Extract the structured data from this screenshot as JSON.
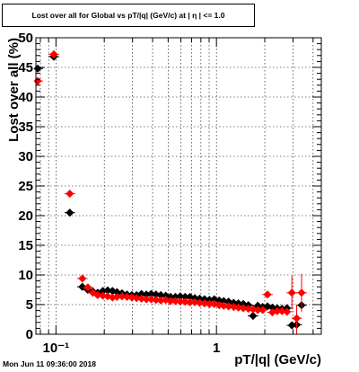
{
  "chart_data": {
    "type": "scatter",
    "title": "Lost over all for Global vs pT/|q| (GeV/c) at | η | <= 1.0",
    "xlabel": "pT/|q| (GeV/c)",
    "ylabel": "Lost over all (%)",
    "x_scale": "log",
    "xlim": [
      0.075,
      4.5
    ],
    "ylim": [
      0,
      50
    ],
    "x_tick_labels": [
      "10⁻¹",
      "1"
    ],
    "y_tick_labels": [
      "0",
      "5",
      "10",
      "15",
      "20",
      "25",
      "30",
      "35",
      "40",
      "45",
      "50"
    ],
    "grid": true,
    "series": [
      {
        "color": "#000000",
        "points": [
          {
            "x": 0.077,
            "y": 44.8
          },
          {
            "x": 0.097,
            "y": 46.8
          },
          {
            "x": 0.122,
            "y": 20.5
          },
          {
            "x": 0.146,
            "y": 8.0
          },
          {
            "x": 0.158,
            "y": 7.5
          },
          {
            "x": 0.17,
            "y": 7.2
          },
          {
            "x": 0.182,
            "y": 7.0
          },
          {
            "x": 0.196,
            "y": 7.3
          },
          {
            "x": 0.21,
            "y": 7.4
          },
          {
            "x": 0.225,
            "y": 7.3
          },
          {
            "x": 0.24,
            "y": 7.1
          },
          {
            "x": 0.258,
            "y": 6.9
          },
          {
            "x": 0.277,
            "y": 6.7
          },
          {
            "x": 0.297,
            "y": 6.6
          },
          {
            "x": 0.318,
            "y": 6.6
          },
          {
            "x": 0.341,
            "y": 6.8
          },
          {
            "x": 0.366,
            "y": 6.7
          },
          {
            "x": 0.392,
            "y": 6.8
          },
          {
            "x": 0.42,
            "y": 6.7
          },
          {
            "x": 0.45,
            "y": 6.6
          },
          {
            "x": 0.483,
            "y": 6.5
          },
          {
            "x": 0.517,
            "y": 6.3
          },
          {
            "x": 0.555,
            "y": 6.3
          },
          {
            "x": 0.595,
            "y": 6.4
          },
          {
            "x": 0.638,
            "y": 6.3
          },
          {
            "x": 0.684,
            "y": 6.3
          },
          {
            "x": 0.733,
            "y": 6.1
          },
          {
            "x": 0.786,
            "y": 6.0
          },
          {
            "x": 0.843,
            "y": 5.9
          },
          {
            "x": 0.904,
            "y": 5.8
          },
          {
            "x": 0.969,
            "y": 5.9
          },
          {
            "x": 1.04,
            "y": 5.7
          },
          {
            "x": 1.11,
            "y": 5.6
          },
          {
            "x": 1.19,
            "y": 5.5
          },
          {
            "x": 1.28,
            "y": 5.3
          },
          {
            "x": 1.37,
            "y": 5.2
          },
          {
            "x": 1.47,
            "y": 5.1
          },
          {
            "x": 1.58,
            "y": 4.9
          },
          {
            "x": 1.69,
            "y": 3.1
          },
          {
            "x": 1.81,
            "y": 4.8
          },
          {
            "x": 1.94,
            "y": 4.6
          },
          {
            "x": 2.08,
            "y": 4.7
          },
          {
            "x": 2.23,
            "y": 4.5
          },
          {
            "x": 2.39,
            "y": 4.4
          },
          {
            "x": 2.56,
            "y": 4.3
          },
          {
            "x": 2.75,
            "y": 4.4
          },
          {
            "x": 2.95,
            "y": 1.5
          },
          {
            "x": 3.16,
            "y": 1.6
          },
          {
            "x": 3.39,
            "y": 4.9
          }
        ]
      },
      {
        "color": "#ff0000",
        "points": [
          {
            "x": 0.077,
            "y": 42.7
          },
          {
            "x": 0.097,
            "y": 47.2
          },
          {
            "x": 0.122,
            "y": 23.7
          },
          {
            "x": 0.146,
            "y": 9.4
          },
          {
            "x": 0.158,
            "y": 7.9
          },
          {
            "x": 0.17,
            "y": 7.0
          },
          {
            "x": 0.182,
            "y": 6.6
          },
          {
            "x": 0.196,
            "y": 6.5
          },
          {
            "x": 0.21,
            "y": 6.4
          },
          {
            "x": 0.225,
            "y": 6.2
          },
          {
            "x": 0.24,
            "y": 6.3
          },
          {
            "x": 0.258,
            "y": 6.4
          },
          {
            "x": 0.277,
            "y": 6.3
          },
          {
            "x": 0.297,
            "y": 6.2
          },
          {
            "x": 0.318,
            "y": 6.1
          },
          {
            "x": 0.341,
            "y": 6.0
          },
          {
            "x": 0.366,
            "y": 5.9
          },
          {
            "x": 0.392,
            "y": 5.9
          },
          {
            "x": 0.42,
            "y": 5.8
          },
          {
            "x": 0.45,
            "y": 5.7
          },
          {
            "x": 0.483,
            "y": 5.8
          },
          {
            "x": 0.517,
            "y": 5.6
          },
          {
            "x": 0.555,
            "y": 5.6
          },
          {
            "x": 0.595,
            "y": 5.5
          },
          {
            "x": 0.638,
            "y": 5.5
          },
          {
            "x": 0.684,
            "y": 5.4
          },
          {
            "x": 0.733,
            "y": 5.4
          },
          {
            "x": 0.786,
            "y": 5.3
          },
          {
            "x": 0.843,
            "y": 5.2
          },
          {
            "x": 0.904,
            "y": 5.1
          },
          {
            "x": 0.969,
            "y": 5.1
          },
          {
            "x": 1.04,
            "y": 4.9
          },
          {
            "x": 1.11,
            "y": 4.8
          },
          {
            "x": 1.19,
            "y": 4.7
          },
          {
            "x": 1.28,
            "y": 4.6
          },
          {
            "x": 1.37,
            "y": 4.5
          },
          {
            "x": 1.47,
            "y": 4.4
          },
          {
            "x": 1.58,
            "y": 4.3
          },
          {
            "x": 1.69,
            "y": 4.2
          },
          {
            "x": 1.81,
            "y": 4.1
          },
          {
            "x": 1.94,
            "y": 4.1
          },
          {
            "x": 2.08,
            "y": 6.7
          },
          {
            "x": 2.23,
            "y": 3.7
          },
          {
            "x": 2.39,
            "y": 3.9
          },
          {
            "x": 2.56,
            "y": 3.9
          },
          {
            "x": 2.75,
            "y": 3.8
          },
          {
            "x": 2.95,
            "y": 7.0
          },
          {
            "x": 3.16,
            "y": 2.7
          },
          {
            "x": 3.39,
            "y": 7.0
          }
        ],
        "error_bars": [
          {
            "x": 2.95,
            "y": 7.0,
            "lo": 4.2,
            "hi": 9.8
          },
          {
            "x": 3.16,
            "y": 2.7,
            "lo": 0.0,
            "hi": 5.0
          },
          {
            "x": 3.39,
            "y": 7.0,
            "lo": 3.8,
            "hi": 10.2
          }
        ]
      }
    ]
  },
  "footer": {
    "timestamp": "Mon Jun 11 09:36:00 2018"
  }
}
